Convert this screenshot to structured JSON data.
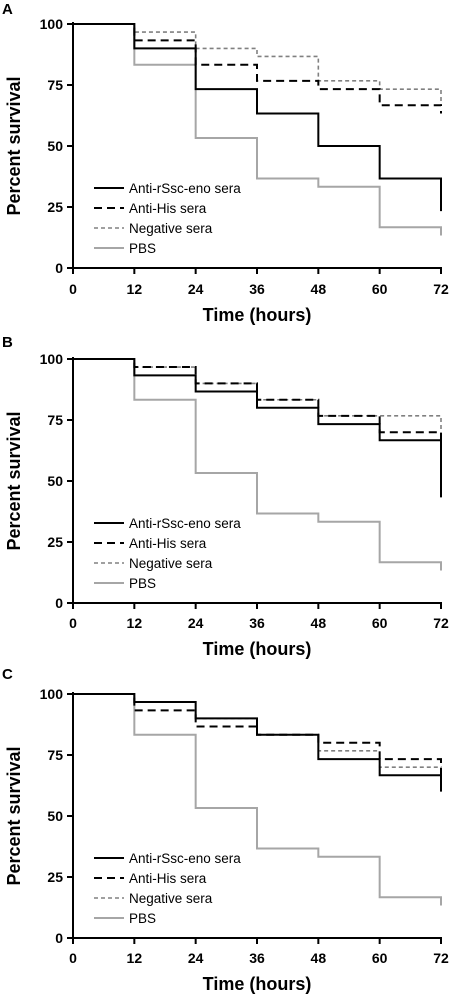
{
  "chart_data": [
    {
      "type": "line",
      "panel_label": "A",
      "xlabel": "Time (hours)",
      "ylabel": "Percent survival",
      "xlim": [
        0,
        72
      ],
      "ylim": [
        0,
        100
      ],
      "xticks": [
        "0",
        "12",
        "24",
        "36",
        "48",
        "60",
        "72"
      ],
      "yticks": [
        "0",
        "25",
        "50",
        "75",
        "100"
      ],
      "grid": false,
      "legend_position": "bottom-left",
      "step": true,
      "x": [
        0,
        12,
        24,
        36,
        48,
        60,
        72
      ],
      "series": [
        {
          "name": "Anti-rSsc-eno sera",
          "style": "solid",
          "color": "#000000",
          "values": [
            100,
            90,
            73.3,
            63.3,
            50,
            36.7,
            23.3
          ]
        },
        {
          "name": "Anti-His sera",
          "style": "dashed",
          "color": "#000000",
          "values": [
            100,
            93.3,
            83.3,
            76.7,
            73.3,
            66.7,
            63.3
          ]
        },
        {
          "name": "Negative sera",
          "style": "dotted",
          "color": "#808080",
          "values": [
            100,
            96.7,
            90,
            86.7,
            76.7,
            73.3,
            66.7
          ]
        },
        {
          "name": "PBS",
          "style": "solid",
          "color": "#a6a6a6",
          "values": [
            100,
            83.3,
            53.3,
            36.7,
            33.3,
            16.7,
            13.3
          ]
        }
      ]
    },
    {
      "type": "line",
      "panel_label": "B",
      "xlabel": "Time (hours)",
      "ylabel": "Percent survival",
      "xlim": [
        0,
        72
      ],
      "ylim": [
        0,
        100
      ],
      "xticks": [
        "0",
        "12",
        "24",
        "36",
        "48",
        "60",
        "72"
      ],
      "yticks": [
        "0",
        "25",
        "50",
        "75",
        "100"
      ],
      "grid": false,
      "legend_position": "bottom-left",
      "step": true,
      "x": [
        0,
        12,
        24,
        36,
        48,
        60,
        72
      ],
      "series": [
        {
          "name": "Anti-rSsc-eno sera",
          "style": "solid",
          "color": "#000000",
          "values": [
            100,
            93.3,
            86.7,
            80,
            73.3,
            66.7,
            43.3
          ]
        },
        {
          "name": "Anti-His sera",
          "style": "dashed",
          "color": "#000000",
          "values": [
            100,
            96.7,
            90,
            83.3,
            76.7,
            70,
            63.3
          ]
        },
        {
          "name": "Negative sera",
          "style": "dotted",
          "color": "#808080",
          "values": [
            100,
            96.7,
            90,
            83.3,
            76.7,
            76.7,
            66.7
          ]
        },
        {
          "name": "PBS",
          "style": "solid",
          "color": "#a6a6a6",
          "values": [
            100,
            83.3,
            53.3,
            36.7,
            33.3,
            16.7,
            13.3
          ]
        }
      ]
    },
    {
      "type": "line",
      "panel_label": "C",
      "xlabel": "Time (hours)",
      "ylabel": "Percent survival",
      "xlim": [
        0,
        72
      ],
      "ylim": [
        0,
        100
      ],
      "xticks": [
        "0",
        "12",
        "24",
        "36",
        "48",
        "60",
        "72"
      ],
      "yticks": [
        "0",
        "25",
        "50",
        "75",
        "100"
      ],
      "grid": false,
      "legend_position": "bottom-left",
      "step": true,
      "x": [
        0,
        12,
        24,
        36,
        48,
        60,
        72
      ],
      "series": [
        {
          "name": "Anti-rSsc-eno sera",
          "style": "solid",
          "color": "#000000",
          "values": [
            100,
            96.7,
            90,
            83.3,
            73.3,
            66.7,
            60
          ]
        },
        {
          "name": "Anti-His sera",
          "style": "dashed",
          "color": "#000000",
          "values": [
            100,
            93.3,
            86.7,
            83.3,
            80,
            73.3,
            66.7
          ]
        },
        {
          "name": "Negative sera",
          "style": "dotted",
          "color": "#808080",
          "values": [
            100,
            96.7,
            90,
            83.3,
            76.7,
            70,
            66.7
          ]
        },
        {
          "name": "PBS",
          "style": "solid",
          "color": "#a6a6a6",
          "values": [
            100,
            83.3,
            53.3,
            36.7,
            33.3,
            16.7,
            13.3
          ]
        }
      ]
    }
  ]
}
